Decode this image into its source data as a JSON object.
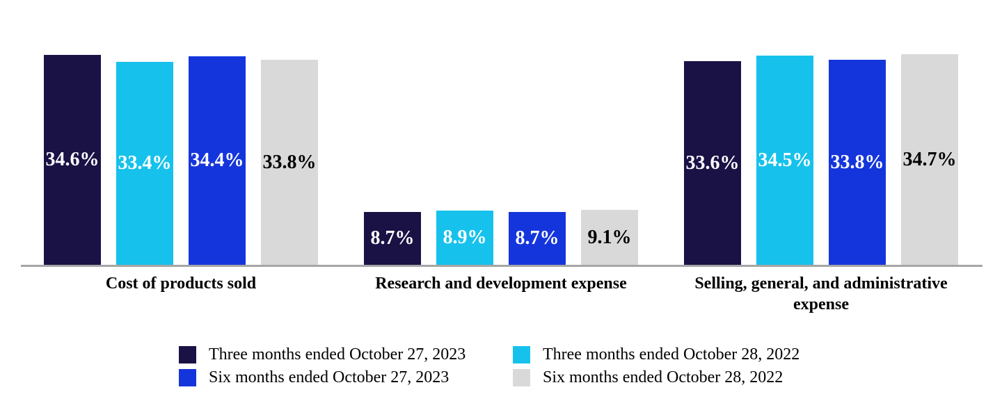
{
  "chart_data": {
    "type": "bar",
    "title": "",
    "xlabel": "",
    "ylabel": "",
    "value_format": "percent",
    "grid": false,
    "legend_position": "bottom",
    "ylim": [
      0,
      43.7
    ],
    "categories": [
      "Cost of products sold",
      "Research and development expense",
      "Selling, general, and administrative\nexpense"
    ],
    "series": [
      {
        "name": "Three months ended October 27, 2023",
        "color": "#1A1145",
        "label_color": "#FFFFFF",
        "values": [
          34.6,
          8.7,
          33.6
        ]
      },
      {
        "name": "Three months ended October 28, 2022",
        "color": "#16C2EC",
        "label_color": "#FFFFFF",
        "values": [
          33.4,
          8.9,
          34.5
        ]
      },
      {
        "name": "Six months ended October 27, 2023",
        "color": "#1535DC",
        "label_color": "#FFFFFF",
        "values": [
          34.4,
          8.7,
          33.8
        ]
      },
      {
        "name": "Six months ended October 28, 2022",
        "color": "#D9D9D9",
        "label_color": "#000000",
        "values": [
          33.8,
          9.1,
          34.7
        ]
      }
    ]
  },
  "axis": {
    "line_color": "#A6A6A6"
  },
  "background": "#FFFFFF"
}
